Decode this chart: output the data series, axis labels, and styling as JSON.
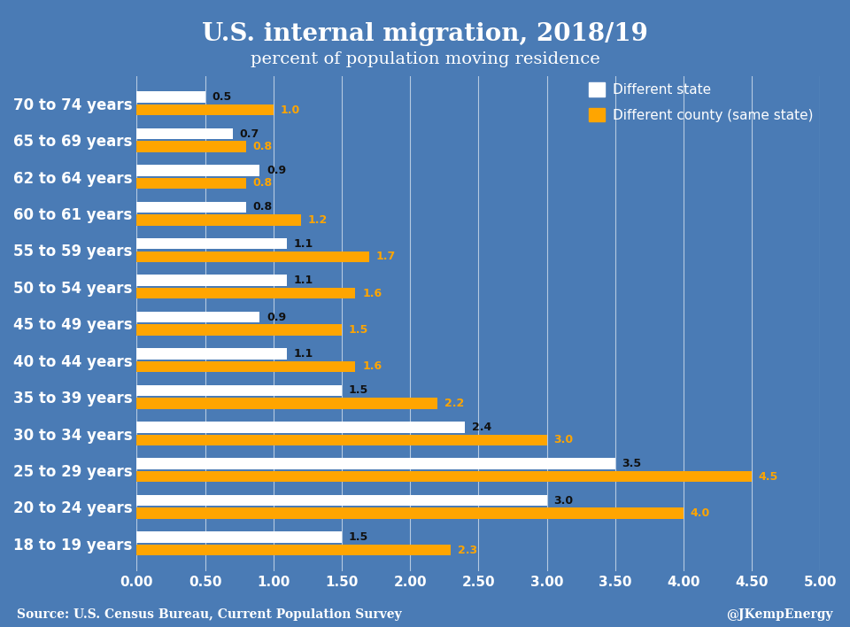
{
  "title": "U.S. internal migration, 2018/19",
  "subtitle": "percent of population moving residence",
  "categories": [
    "70 to 74 years",
    "65 to 69 years",
    "62 to 64 years",
    "60 to 61 years",
    "55 to 59 years",
    "50 to 54 years",
    "45 to 49 years",
    "40 to 44 years",
    "35 to 39 years",
    "30 to 34 years",
    "25 to 29 years",
    "20 to 24 years",
    "18 to 19 years"
  ],
  "different_state": [
    0.5,
    0.7,
    0.9,
    0.8,
    1.1,
    1.1,
    0.9,
    1.1,
    1.5,
    2.4,
    3.5,
    3.0,
    1.5
  ],
  "different_county": [
    1.0,
    0.8,
    0.8,
    1.2,
    1.7,
    1.6,
    1.5,
    1.6,
    2.2,
    3.0,
    4.5,
    4.0,
    2.3
  ],
  "state_color": "#ffffff",
  "county_color": "#FFA500",
  "background_color": "#4a7bb5",
  "text_color": "#ffffff",
  "xlim": [
    0,
    5.0
  ],
  "xticks": [
    0.0,
    0.5,
    1.0,
    1.5,
    2.0,
    2.5,
    3.0,
    3.5,
    4.0,
    4.5,
    5.0
  ],
  "xtick_labels": [
    "0.00",
    "0.50",
    "1.00",
    "1.50",
    "2.00",
    "2.50",
    "3.00",
    "3.50",
    "4.00",
    "4.50",
    "5.00"
  ],
  "source_text": "Source: U.S. Census Bureau, Current Population Survey",
  "credit_text": "@JKempEnergy",
  "legend_state_label": "Different state",
  "legend_county_label": "Different county (same state)",
  "bar_height": 0.3,
  "bar_gap": 0.05,
  "title_fontsize": 20,
  "subtitle_fontsize": 14,
  "tick_fontsize": 11,
  "label_fontsize": 9,
  "ylabel_fontsize": 12
}
